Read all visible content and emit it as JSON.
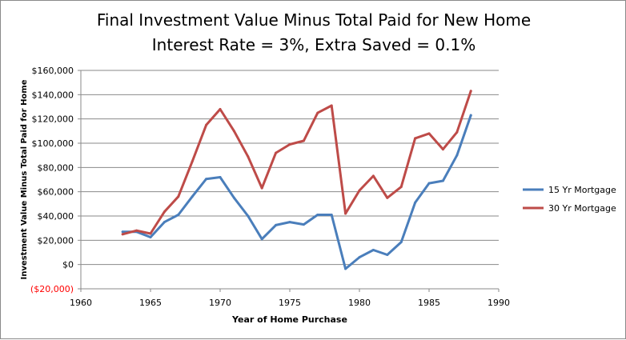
{
  "chart_data": {
    "type": "line",
    "title": "Final Investment Value Minus Total Paid for New Home",
    "subtitle": "Interest Rate = 3%, Extra Saved = 0.1%",
    "xlabel": "Year of Home Purchase",
    "ylabel": "Investment Value Minus Total Paid  for Home",
    "xlim": [
      1960,
      1990
    ],
    "ylim": [
      -20000,
      160000
    ],
    "x_ticks": [
      "1960",
      "1965",
      "1970",
      "1975",
      "1980",
      "1985",
      "1990"
    ],
    "y_ticks": [
      "($20,000)",
      "$0",
      "$20,000",
      "$40,000",
      "$60,000",
      "$80,000",
      "$100,000",
      "$120,000",
      "$140,000",
      "$160,000"
    ],
    "grid": "horizontal",
    "legend_position": "right",
    "x": [
      1963,
      1964,
      1965,
      1966,
      1967,
      1968,
      1969,
      1970,
      1971,
      1972,
      1973,
      1974,
      1975,
      1976,
      1977,
      1978,
      1979,
      1980,
      1981,
      1982,
      1983,
      1984,
      1985,
      1986,
      1987,
      1988
    ],
    "series": [
      {
        "name": "15 Yr Mortgage",
        "color": "#4a7ebb",
        "values": [
          27000,
          27000,
          22500,
          35000,
          41000,
          56000,
          70500,
          72000,
          55000,
          40000,
          21000,
          32500,
          35000,
          33000,
          41000,
          41000,
          -3500,
          6000,
          12000,
          8000,
          18500,
          51000,
          67000,
          69000,
          90000,
          123000
        ]
      },
      {
        "name": "30 Yr Mortgage",
        "color": "#be4b48",
        "values": [
          25000,
          28000,
          25500,
          43500,
          56000,
          85000,
          115000,
          128000,
          110000,
          89000,
          63000,
          92000,
          99000,
          102000,
          125000,
          131000,
          42000,
          61000,
          73000,
          55000,
          64000,
          104000,
          108000,
          95000,
          109000,
          143000
        ]
      }
    ]
  }
}
